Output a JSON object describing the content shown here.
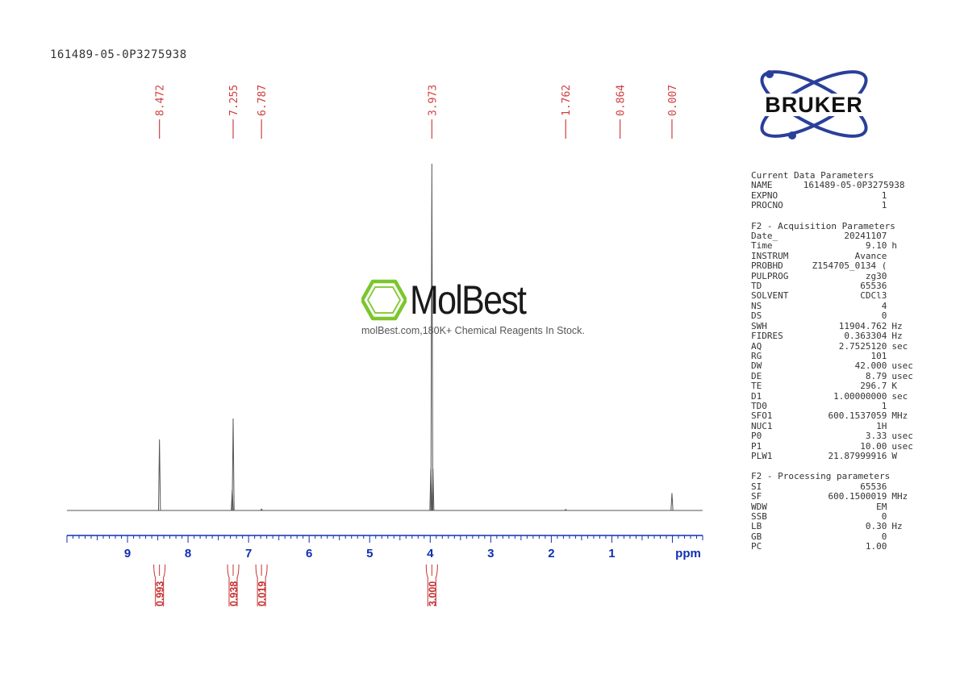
{
  "sample_id": "161489-05-0P3275938",
  "colors": {
    "peak_label": "#d04040",
    "axis": "#1030b0",
    "spectrum": "#555555",
    "integral": "#c83030",
    "watermark_green": "#7bc62d",
    "bruker": "#2a3f9a"
  },
  "watermark": {
    "name": "MolBest",
    "tagline": "molBest.com,180K+ Chemical Reagents In Stock."
  },
  "bruker_logo": {
    "text": "BRUKER"
  },
  "chart_data": {
    "type": "line",
    "xlabel": "ppm",
    "xlim": [
      10.0,
      -0.5
    ],
    "x_ticks": [
      "9",
      "8",
      "7",
      "6",
      "5",
      "4",
      "3",
      "2",
      "1"
    ],
    "peak_labels": [
      "8.472",
      "7.255",
      "6.787",
      "3.973",
      "1.762",
      "0.864",
      "0.007"
    ],
    "peaks": [
      {
        "ppm": 8.472,
        "height": 0.205
      },
      {
        "ppm": 7.255,
        "height": 0.265
      },
      {
        "ppm": 7.27,
        "height": 0.06
      },
      {
        "ppm": 6.787,
        "height": 0.004
      },
      {
        "ppm": 3.973,
        "height": 1.0
      },
      {
        "ppm": 3.99,
        "height": 0.12
      },
      {
        "ppm": 3.955,
        "height": 0.12
      },
      {
        "ppm": 1.762,
        "height": 0.003
      },
      {
        "ppm": 0.007,
        "height": 0.05
      }
    ],
    "integrals": [
      {
        "ppm": 8.472,
        "value": "0.993"
      },
      {
        "ppm": 7.255,
        "value": "0.938"
      },
      {
        "ppm": 6.787,
        "value": "0.019"
      },
      {
        "ppm": 3.973,
        "value": "3.000"
      }
    ]
  },
  "parameters": [
    {
      "title": "Current Data Parameters",
      "rows": [
        {
          "name": "NAME",
          "value": "161489-05-0P3275938",
          "unit": ""
        },
        {
          "name": "EXPNO",
          "value": "1",
          "unit": ""
        },
        {
          "name": "PROCNO",
          "value": "1",
          "unit": ""
        }
      ]
    },
    {
      "title": "F2 - Acquisition Parameters",
      "rows": [
        {
          "name": "Date_",
          "value": "20241107",
          "unit": ""
        },
        {
          "name": "Time",
          "value": "9.10",
          "unit": "h"
        },
        {
          "name": "INSTRUM",
          "value": "Avance",
          "unit": ""
        },
        {
          "name": "PROBHD",
          "value": "Z154705_0134 (",
          "unit": ""
        },
        {
          "name": "PULPROG",
          "value": "zg30",
          "unit": ""
        },
        {
          "name": "TD",
          "value": "65536",
          "unit": ""
        },
        {
          "name": "SOLVENT",
          "value": "CDCl3",
          "unit": ""
        },
        {
          "name": "NS",
          "value": "4",
          "unit": ""
        },
        {
          "name": "DS",
          "value": "0",
          "unit": ""
        },
        {
          "name": "SWH",
          "value": "11904.762",
          "unit": "Hz"
        },
        {
          "name": "FIDRES",
          "value": "0.363304",
          "unit": "Hz"
        },
        {
          "name": "AQ",
          "value": "2.7525120",
          "unit": "sec"
        },
        {
          "name": "RG",
          "value": "101",
          "unit": ""
        },
        {
          "name": "DW",
          "value": "42.000",
          "unit": "usec"
        },
        {
          "name": "DE",
          "value": "8.79",
          "unit": "usec"
        },
        {
          "name": "TE",
          "value": "296.7",
          "unit": "K"
        },
        {
          "name": "D1",
          "value": "1.00000000",
          "unit": "sec"
        },
        {
          "name": "TD0",
          "value": "1",
          "unit": ""
        },
        {
          "name": "SFO1",
          "value": "600.1537059",
          "unit": "MHz"
        },
        {
          "name": "NUC1",
          "value": "1H",
          "unit": ""
        },
        {
          "name": "P0",
          "value": "3.33",
          "unit": "usec"
        },
        {
          "name": "P1",
          "value": "10.00",
          "unit": "usec"
        },
        {
          "name": "PLW1",
          "value": "21.87999916",
          "unit": "W"
        }
      ]
    },
    {
      "title": "F2 - Processing parameters",
      "rows": [
        {
          "name": "SI",
          "value": "65536",
          "unit": ""
        },
        {
          "name": "SF",
          "value": "600.1500019",
          "unit": "MHz"
        },
        {
          "name": "WDW",
          "value": "EM",
          "unit": ""
        },
        {
          "name": "SSB",
          "value": "0",
          "unit": ""
        },
        {
          "name": "LB",
          "value": "0.30",
          "unit": "Hz"
        },
        {
          "name": "GB",
          "value": "0",
          "unit": ""
        },
        {
          "name": "PC",
          "value": "1.00",
          "unit": ""
        }
      ]
    }
  ]
}
